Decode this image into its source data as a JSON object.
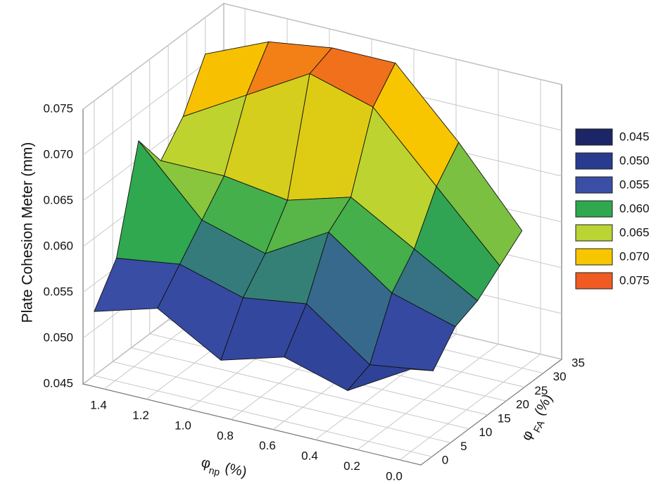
{
  "chart_data": {
    "type": "surface",
    "zlabel": "Plate Cohesion Meter (mm)",
    "xlabel": {
      "symbol": "φ",
      "subscript": "np",
      "unit": "(%)"
    },
    "ylabel": {
      "symbol": "φ",
      "subscript": "FA",
      "unit": "(%)"
    },
    "x": [
      0,
      0.3,
      0.6,
      0.9,
      1.2,
      1.5
    ],
    "y": [
      0,
      6,
      12,
      18,
      24,
      30
    ],
    "z": [
      [
        0.054,
        0.05,
        0.052,
        0.05,
        0.054,
        0.052
      ],
      [
        0.052,
        0.051,
        0.056,
        0.055,
        0.057,
        0.056
      ],
      [
        0.055,
        0.057,
        0.062,
        0.058,
        0.06,
        0.067
      ],
      [
        0.056,
        0.06,
        0.064,
        0.062,
        0.063,
        0.063
      ],
      [
        0.058,
        0.065,
        0.072,
        0.074,
        0.07,
        0.066
      ],
      [
        0.06,
        0.068,
        0.075,
        0.075,
        0.074,
        0.071
      ]
    ],
    "xlim": [
      -0.1,
      1.5
    ],
    "ylim": [
      -3,
      35
    ],
    "zlim": [
      0.045,
      0.075
    ],
    "xticks": [
      {
        "value": 0,
        "label": "0.0"
      },
      0.2,
      0.4,
      0.6,
      0.8,
      {
        "value": 1,
        "label": "1.0"
      },
      1.2,
      1.4
    ],
    "yticks": [
      0,
      5,
      10,
      15,
      20,
      25,
      30,
      35
    ],
    "zticks": [
      0.045,
      {
        "value": 0.05,
        "label": "0.050"
      },
      0.055,
      {
        "value": 0.06,
        "label": "0.060"
      },
      0.065,
      {
        "value": 0.07,
        "label": "0.070"
      },
      0.075
    ],
    "grid": true,
    "legend": {
      "position": "right",
      "levels": [
        0.045,
        {
          "value": 0.05,
          "label": "0.050"
        },
        0.055,
        {
          "value": 0.06,
          "label": "0.060"
        },
        0.065,
        {
          "value": 0.07,
          "label": "0.070"
        },
        0.075
      ],
      "colors": [
        "#1c2566",
        "#283b8f",
        "#3a4ea6",
        "#2fa84f",
        "#b9d433",
        "#f7c600",
        "#ef5b22"
      ]
    }
  }
}
